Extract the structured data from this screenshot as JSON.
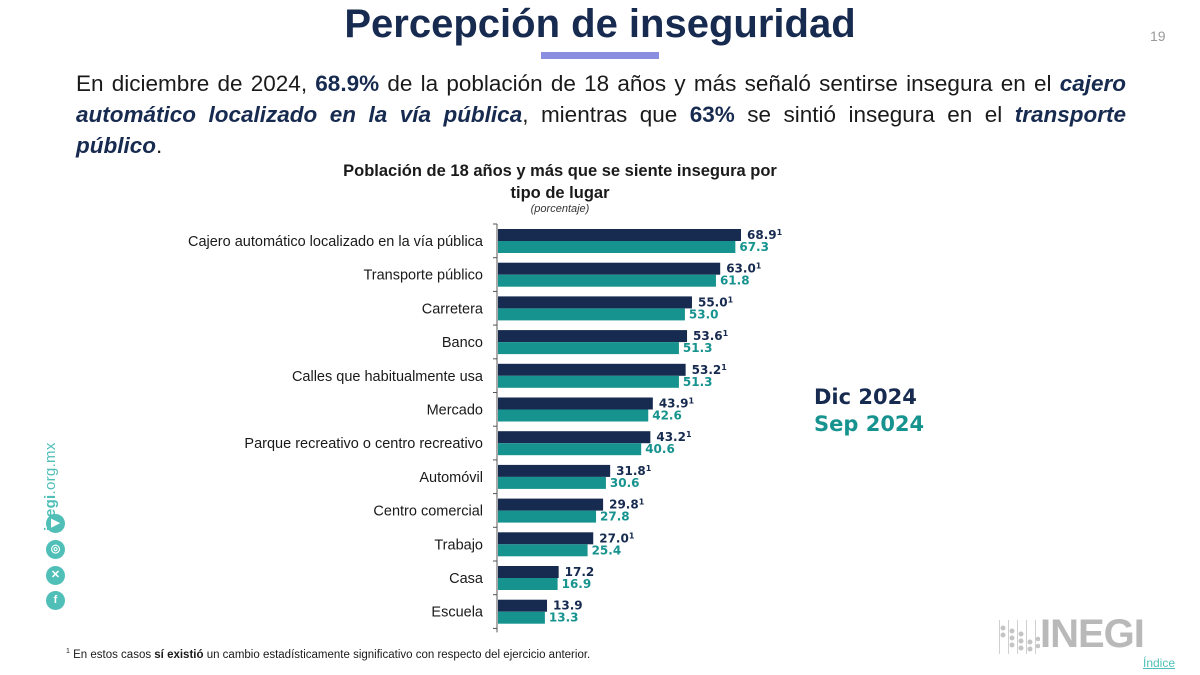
{
  "header": {
    "title": "Percepción de inseguridad",
    "page_number": "19"
  },
  "lead": {
    "p1": "En diciembre de 2024, ",
    "p2": "68.9%",
    "p3": " de la población de 18 años y más señaló sentirse insegura en el ",
    "p4": "cajero automático localizado en la vía pública",
    "p5": ", mientras que ",
    "p6": "63%",
    "p7": " se sintió insegura en el ",
    "p8": "transporte público",
    "p9": "."
  },
  "legend": {
    "dec": "Dic 2024",
    "sep": "Sep 2024"
  },
  "footnote": {
    "mark": "1",
    "t1": " En estos casos ",
    "t2": "sí existió",
    "t3": " un cambio estadísticamente significativo con respecto del ejercicio anterior."
  },
  "sidebar": {
    "site_bold": "inegi",
    "site_rest": ".org.mx",
    "icons": [
      "youtube-icon",
      "instagram-icon",
      "x-icon",
      "facebook-icon"
    ]
  },
  "logo": {
    "text": "INEGI",
    "index_link": "Índice"
  },
  "colors": {
    "dec": "#172A4F",
    "sep": "#17938F",
    "accent": "#8A8EE0",
    "social": "#4FBFB7"
  },
  "chart_data": {
    "type": "bar",
    "orientation": "horizontal",
    "title": "Población de 18 años y más que se siente insegura por tipo de lugar",
    "subtitle": "(porcentaje)",
    "xlabel": "",
    "ylabel": "",
    "xlim": [
      0,
      100
    ],
    "grid": false,
    "legend_position": "right",
    "categories": [
      "Cajero automático localizado en la vía pública",
      "Transporte público",
      "Carretera",
      "Banco",
      "Calles que habitualmente usa",
      "Mercado",
      "Parque recreativo o centro recreativo",
      "Automóvil",
      "Centro comercial",
      "Trabajo",
      "Casa",
      "Escuela"
    ],
    "series": [
      {
        "name": "Dic 2024",
        "values": [
          68.9,
          63.0,
          55.0,
          53.6,
          53.2,
          43.9,
          43.2,
          31.8,
          29.8,
          27.0,
          17.2,
          13.9
        ],
        "labels": [
          "68.9",
          "63.0",
          "55.0",
          "53.6",
          "53.2",
          "43.9",
          "43.2",
          "31.8",
          "29.8",
          "27.0",
          "17.2",
          "13.9"
        ],
        "significant": [
          true,
          true,
          true,
          true,
          true,
          true,
          true,
          true,
          true,
          true,
          false,
          false
        ]
      },
      {
        "name": "Sep 2024",
        "values": [
          67.3,
          61.8,
          53.0,
          51.3,
          51.3,
          42.6,
          40.6,
          30.6,
          27.8,
          25.4,
          16.9,
          13.3
        ],
        "labels": [
          "67.3",
          "61.8",
          "53.0",
          "51.3",
          "51.3",
          "42.6",
          "40.6",
          "30.6",
          "27.8",
          "25.4",
          "16.9",
          "13.3"
        ]
      }
    ],
    "significance_mark": "1"
  }
}
